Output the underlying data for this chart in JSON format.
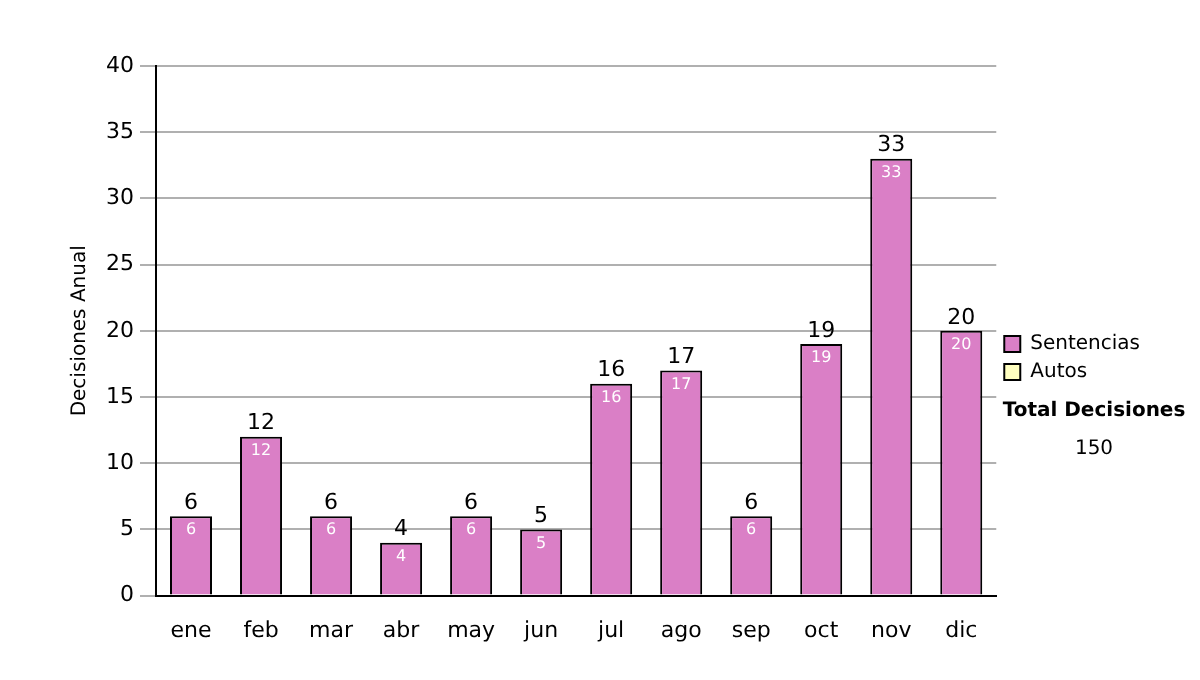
{
  "chart_data": {
    "type": "bar",
    "ylabel": "Decisiones Anual",
    "categories": [
      "ene",
      "feb",
      "mar",
      "abr",
      "may",
      "jun",
      "jul",
      "ago",
      "sep",
      "oct",
      "nov",
      "dic"
    ],
    "series": [
      {
        "name": "Sentencias",
        "color": "#da7fc6",
        "values": [
          6,
          12,
          6,
          4,
          6,
          5,
          16,
          17,
          6,
          19,
          33,
          20
        ],
        "value_labels": [
          "6",
          "12",
          "6",
          "4",
          "6",
          "5",
          "16",
          "17",
          "6",
          "19",
          "33",
          "20"
        ]
      },
      {
        "name": "Autos",
        "color": "#ffffc0",
        "values": [
          0,
          0,
          0,
          0,
          0,
          0,
          0,
          0,
          0,
          0,
          0,
          0
        ]
      }
    ],
    "stacked": true,
    "totals": [
      "6",
      "12",
      "6",
      "4",
      "6",
      "5",
      "16",
      "17",
      "6",
      "19",
      "33",
      "20"
    ],
    "ylim": [
      0,
      40
    ],
    "yticks": [
      0,
      5,
      10,
      15,
      20,
      25,
      30,
      35,
      40
    ],
    "grid": "y",
    "legend": "right",
    "annotations": [
      "Total Decisiones",
      "150"
    ]
  }
}
